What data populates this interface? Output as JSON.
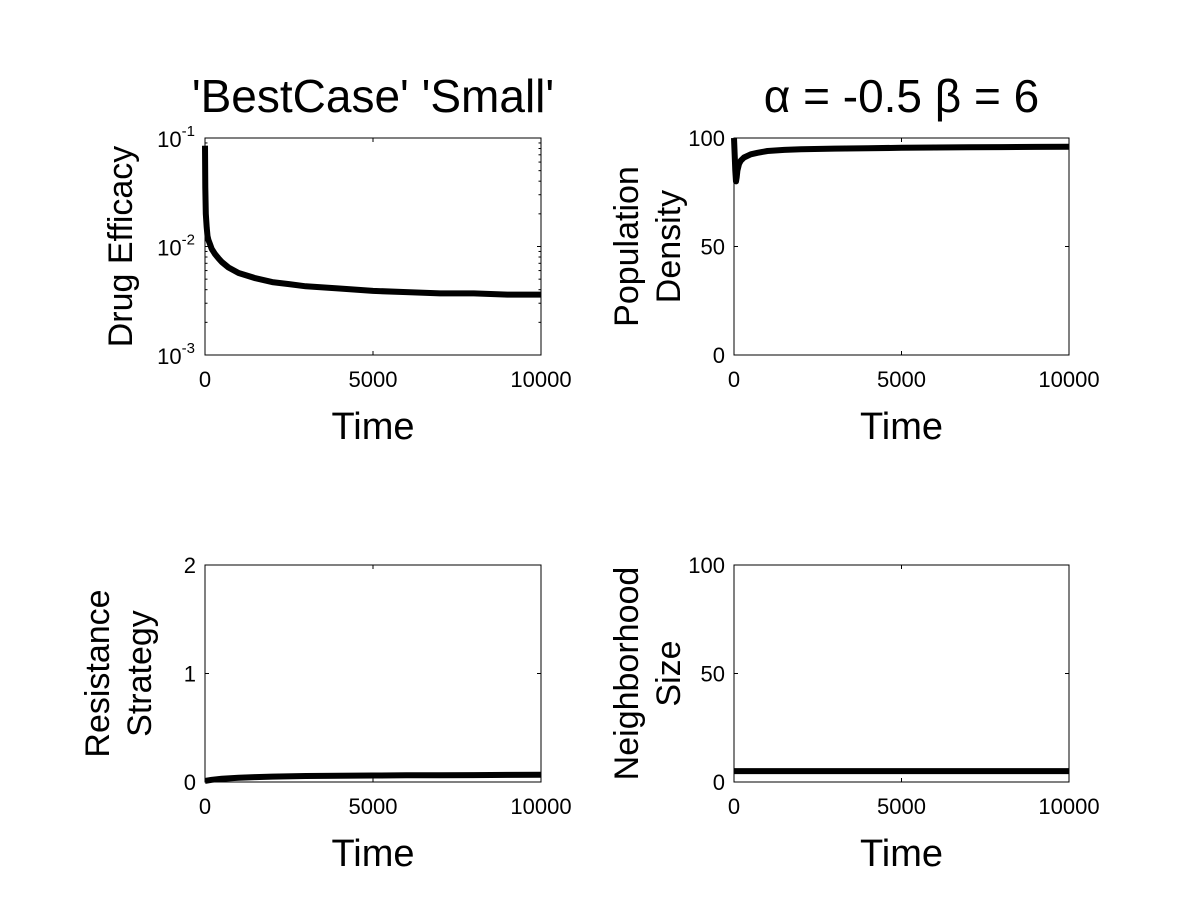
{
  "chart_data": [
    {
      "type": "line",
      "title": "'BestCase' 'Small'",
      "xlabel": "Time",
      "ylabel": "Drug Efficacy",
      "xlim": [
        0,
        10000
      ],
      "ylim": [
        0.001,
        0.1
      ],
      "yscale": "log",
      "xticks": [
        0,
        5000,
        10000
      ],
      "xtick_labels": [
        "0",
        "5000",
        "10000"
      ],
      "yticks": [
        0.001,
        0.01,
        0.1
      ],
      "ytick_labels": [
        {
          "base": "10",
          "exp": "-3"
        },
        {
          "base": "10",
          "exp": "-2"
        },
        {
          "base": "10",
          "exp": "-1"
        }
      ],
      "grid": false,
      "line_color": "#000000",
      "series": [
        {
          "x": [
            0,
            10,
            25,
            50,
            75,
            100,
            150,
            200,
            300,
            400,
            500,
            700,
            1000,
            1500,
            2000,
            2500,
            3000,
            4000,
            5000,
            6000,
            7000,
            8000,
            9000,
            10000
          ],
          "y": [
            0.085,
            0.035,
            0.02,
            0.015,
            0.0125,
            0.0115,
            0.0105,
            0.0095,
            0.0085,
            0.0078,
            0.0072,
            0.0064,
            0.0057,
            0.0051,
            0.0047,
            0.0045,
            0.0043,
            0.0041,
            0.0039,
            0.0038,
            0.0037,
            0.0037,
            0.0036,
            0.0036
          ]
        }
      ]
    },
    {
      "type": "line",
      "title": "α = -0.5 β = 6",
      "xlabel": "Time",
      "ylabel": [
        "Population",
        "Density"
      ],
      "xlim": [
        0,
        10000
      ],
      "ylim": [
        0,
        100
      ],
      "xticks": [
        0,
        5000,
        10000
      ],
      "xtick_labels": [
        "0",
        "5000",
        "10000"
      ],
      "yticks": [
        0,
        50,
        100
      ],
      "ytick_labels": [
        "0",
        "50",
        "100"
      ],
      "grid": false,
      "line_color": "#000000",
      "series": [
        {
          "x": [
            0,
            20,
            40,
            60,
            80,
            100,
            150,
            200,
            300,
            500,
            700,
            1000,
            1500,
            2000,
            3000,
            4000,
            5000,
            6000,
            7000,
            8000,
            9000,
            10000
          ],
          "y": [
            100,
            92,
            85,
            80,
            82,
            85,
            88,
            89.5,
            91,
            92.5,
            93.2,
            94,
            94.5,
            94.8,
            95.1,
            95.3,
            95.5,
            95.6,
            95.7,
            95.8,
            95.9,
            96
          ]
        }
      ]
    },
    {
      "type": "line",
      "title": "",
      "xlabel": "Time",
      "ylabel": [
        "Resistance",
        "Strategy"
      ],
      "xlim": [
        0,
        10000
      ],
      "ylim": [
        0,
        2
      ],
      "xticks": [
        0,
        5000,
        10000
      ],
      "xtick_labels": [
        "0",
        "5000",
        "10000"
      ],
      "yticks": [
        0,
        1,
        2
      ],
      "ytick_labels": [
        "0",
        "1",
        "2"
      ],
      "grid": false,
      "line_color": "#000000",
      "series": [
        {
          "x": [
            0,
            200,
            500,
            1000,
            1500,
            2000,
            3000,
            4000,
            5000,
            6000,
            7000,
            8000,
            9000,
            10000
          ],
          "y": [
            0.01,
            0.02,
            0.03,
            0.04,
            0.045,
            0.05,
            0.055,
            0.058,
            0.06,
            0.062,
            0.063,
            0.064,
            0.065,
            0.066
          ]
        }
      ]
    },
    {
      "type": "line",
      "title": "",
      "xlabel": "Time",
      "ylabel": [
        "Neighborhood",
        "Size"
      ],
      "xlim": [
        0,
        10000
      ],
      "ylim": [
        0,
        100
      ],
      "xticks": [
        0,
        5000,
        10000
      ],
      "xtick_labels": [
        "0",
        "5000",
        "10000"
      ],
      "yticks": [
        0,
        50,
        100
      ],
      "ytick_labels": [
        "0",
        "50",
        "100"
      ],
      "grid": false,
      "line_color": "#000000",
      "series": [
        {
          "x": [
            0,
            10000
          ],
          "y": [
            5,
            5
          ]
        }
      ]
    }
  ]
}
